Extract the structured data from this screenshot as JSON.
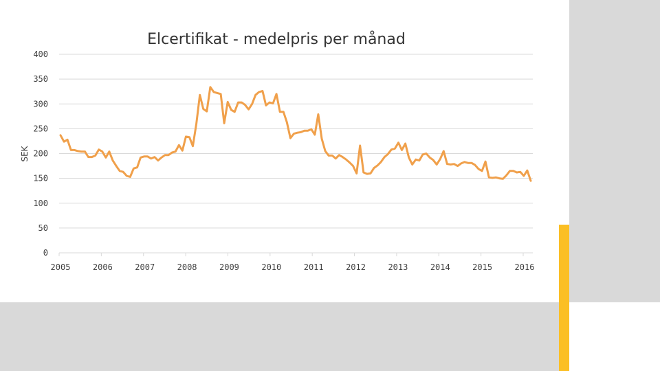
{
  "colors": {
    "line": "#f0a04b",
    "grid": "#d9d9d9",
    "side_panel": "#d9d9d9",
    "accent": "#fbbf24"
  },
  "chart_data": {
    "type": "line",
    "title": "Elcertifikat - medelpris per månad",
    "xlabel": "",
    "ylabel": "SEK",
    "ylim": [
      0,
      400
    ],
    "yticks": [
      "0",
      "50",
      "100",
      "150",
      "200",
      "250",
      "300",
      "350",
      "400"
    ],
    "xticks": [
      "2005",
      "2006",
      "2007",
      "2008",
      "2009",
      "2010",
      "2011",
      "2012",
      "2013",
      "2014",
      "2015",
      "2016"
    ],
    "grid": true,
    "series": [
      {
        "values": [
          237,
          224,
          228,
          207,
          207,
          205,
          204,
          204,
          193,
          193,
          196,
          208,
          204,
          192,
          204,
          186,
          175,
          165,
          163,
          155,
          153,
          170,
          172,
          192,
          194,
          194,
          190,
          193,
          186,
          192,
          197,
          197,
          202,
          204,
          217,
          206,
          234,
          233,
          215,
          260,
          318,
          290,
          285,
          334,
          324,
          322,
          320,
          261,
          304,
          288,
          284,
          303,
          303,
          298,
          289,
          300,
          318,
          324,
          326,
          297,
          303,
          301,
          320,
          284,
          284,
          263,
          231,
          240,
          242,
          243,
          246,
          246,
          249,
          238,
          279,
          230,
          205,
          196,
          196,
          190,
          197,
          193,
          188,
          182,
          175,
          160,
          216,
          162,
          159,
          160,
          171,
          176,
          183,
          193,
          199,
          208,
          210,
          222,
          207,
          220,
          192,
          178,
          188,
          186,
          198,
          200,
          192,
          187,
          178,
          189,
          205,
          179,
          178,
          179,
          175,
          180,
          183,
          181,
          181,
          177,
          169,
          165,
          184,
          152,
          151,
          152,
          150,
          149,
          156,
          165,
          165,
          162,
          163,
          155,
          166,
          145
        ]
      }
    ]
  }
}
